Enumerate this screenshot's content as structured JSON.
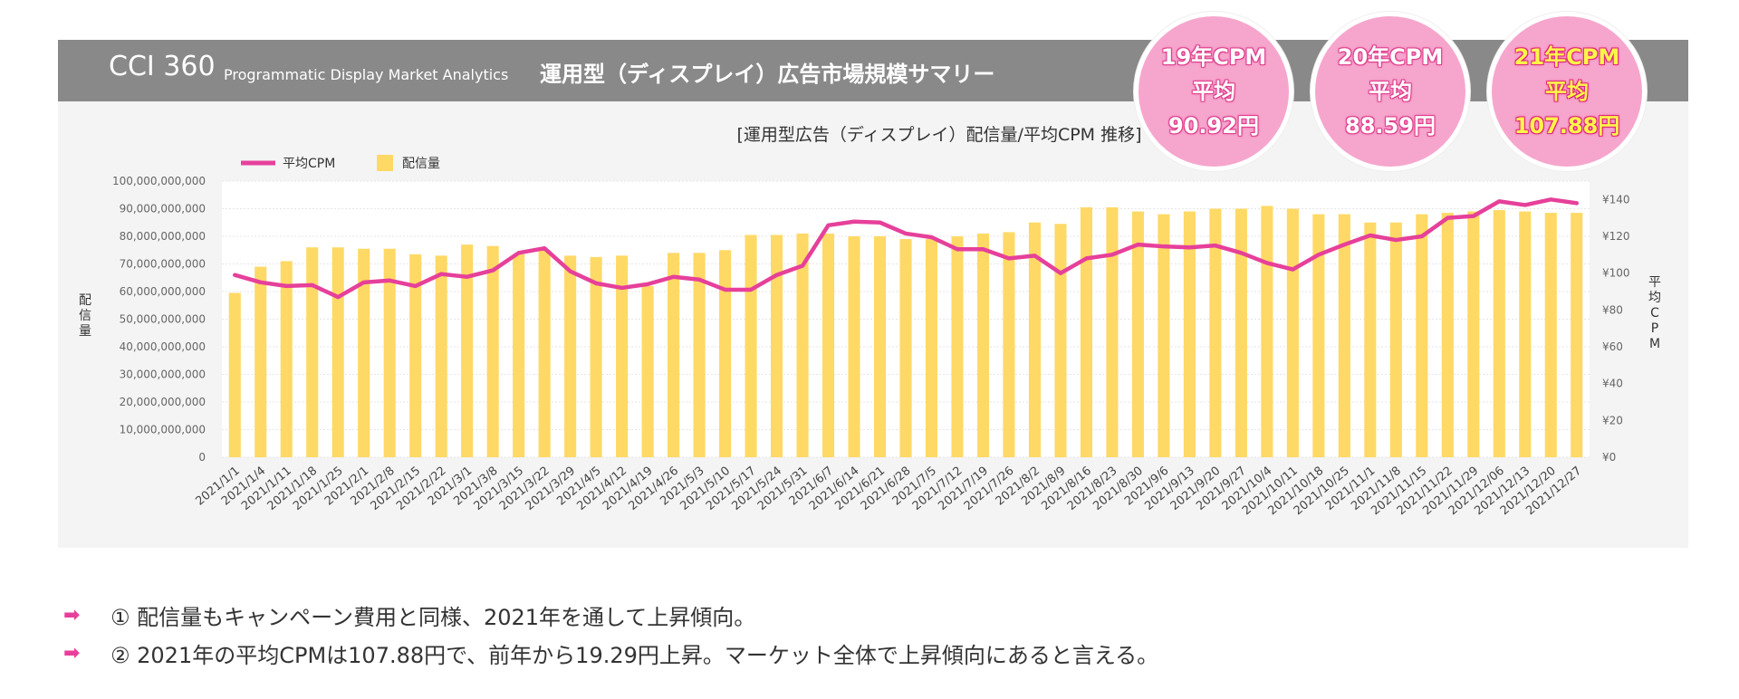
{
  "header": {
    "brand": "CCI 360",
    "brand_sub": "Programmatic Display Market Analytics",
    "title": "運用型（ディスプレイ）広告市場規模サマリー"
  },
  "badges": [
    {
      "line1": "19年CPM",
      "line2": "平均",
      "line3": "90.92円",
      "highlight": false
    },
    {
      "line1": "20年CPM",
      "line2": "平均",
      "line3": "88.59円",
      "highlight": false
    },
    {
      "line1": "21年CPM",
      "line2": "平均",
      "line3": "107.88円",
      "highlight": true
    }
  ],
  "bullets": [
    {
      "arrow": "➡",
      "text": "① 配信量もキャンペーン費用と同様、2021年を通して上昇傾向。"
    },
    {
      "arrow": "➡",
      "text": "② 2021年の平均CPMは107.88円で、前年から19.29円上昇。マーケット全体で上昇傾向にあると言える。"
    }
  ],
  "chart_data": {
    "type": "bar+line",
    "title": "[運用型広告（ディスプレイ）配信量/平均CPM 推移]",
    "legend": {
      "placement": "top-left",
      "items": [
        "平均CPM",
        "配信量"
      ]
    },
    "ylabel_left": "配信量",
    "ylabel_right": "平均CPM",
    "y_left_ticks": [
      "100,000,000,000",
      "90,000,000,000",
      "80,000,000,000",
      "70,000,000,000",
      "60,000,000,000",
      "50,000,000,000",
      "40,000,000,000",
      "30,000,000,000",
      "20,000,000,000",
      "10,000,000,000",
      "0"
    ],
    "y_right_ticks": [
      "¥140",
      "¥120",
      "¥100",
      "¥80",
      "¥60",
      "¥40",
      "¥20",
      "¥0"
    ],
    "ylim_left": [
      0,
      100000000000
    ],
    "ylim_right": [
      0,
      150
    ],
    "grid": true,
    "categories": [
      "2021/1/1",
      "2021/1/4",
      "2021/1/11",
      "2021/1/18",
      "2021/1/25",
      "2021/2/1",
      "2021/2/8",
      "2021/2/15",
      "2021/2/22",
      "2021/3/1",
      "2021/3/8",
      "2021/3/15",
      "2021/3/22",
      "2021/3/29",
      "2021/4/5",
      "2021/4/12",
      "2021/4/19",
      "2021/4/26",
      "2021/5/3",
      "2021/5/10",
      "2021/5/17",
      "2021/5/24",
      "2021/5/31",
      "2021/6/7",
      "2021/6/14",
      "2021/6/21",
      "2021/6/28",
      "2021/7/5",
      "2021/7/12",
      "2021/7/19",
      "2021/7/26",
      "2021/8/2",
      "2021/8/9",
      "2021/8/16",
      "2021/8/23",
      "2021/8/30",
      "2021/9/6",
      "2021/9/13",
      "2021/9/20",
      "2021/9/27",
      "2021/10/4",
      "2021/10/11",
      "2021/10/18",
      "2021/10/25",
      "2021/11/1",
      "2021/11/8",
      "2021/11/15",
      "2021/11/22",
      "2021/11/29",
      "2021/12/06",
      "2021/12/13",
      "2021/12/20",
      "2021/12/27"
    ],
    "series": [
      {
        "name": "配信量",
        "type": "bar",
        "color": "#ffd966",
        "values": [
          59500000000,
          69000000000,
          71000000000,
          76000000000,
          76000000000,
          75500000000,
          75500000000,
          73500000000,
          73000000000,
          77000000000,
          76500000000,
          73500000000,
          75000000000,
          73000000000,
          72500000000,
          73000000000,
          62000000000,
          74000000000,
          74000000000,
          75000000000,
          80500000000,
          80500000000,
          81000000000,
          81000000000,
          80000000000,
          80000000000,
          79000000000,
          79000000000,
          80000000000,
          81000000000,
          81500000000,
          85000000000,
          84500000000,
          90500000000,
          90500000000,
          89000000000,
          88000000000,
          89000000000,
          90000000000,
          90000000000,
          91000000000,
          90000000000,
          88000000000,
          88000000000,
          85000000000,
          85000000000,
          88000000000,
          88500000000,
          89000000000,
          89500000000,
          89000000000,
          88500000000,
          88500000000
        ]
      },
      {
        "name": "平均CPM",
        "type": "line",
        "color": "#e6409a",
        "values": [
          99,
          95,
          93,
          93.5,
          87,
          95,
          96,
          93,
          99.5,
          98,
          101.5,
          111,
          113.5,
          101,
          94.5,
          92,
          94,
          98,
          96.5,
          91,
          91,
          99,
          104,
          126,
          128,
          127.5,
          121.5,
          119.5,
          113,
          113,
          108,
          109.5,
          100,
          108,
          110,
          115.5,
          114.5,
          114,
          115,
          111,
          105.5,
          102,
          110,
          115.5,
          120.5,
          118,
          120,
          130,
          131,
          139,
          137,
          140,
          138
        ]
      }
    ]
  }
}
